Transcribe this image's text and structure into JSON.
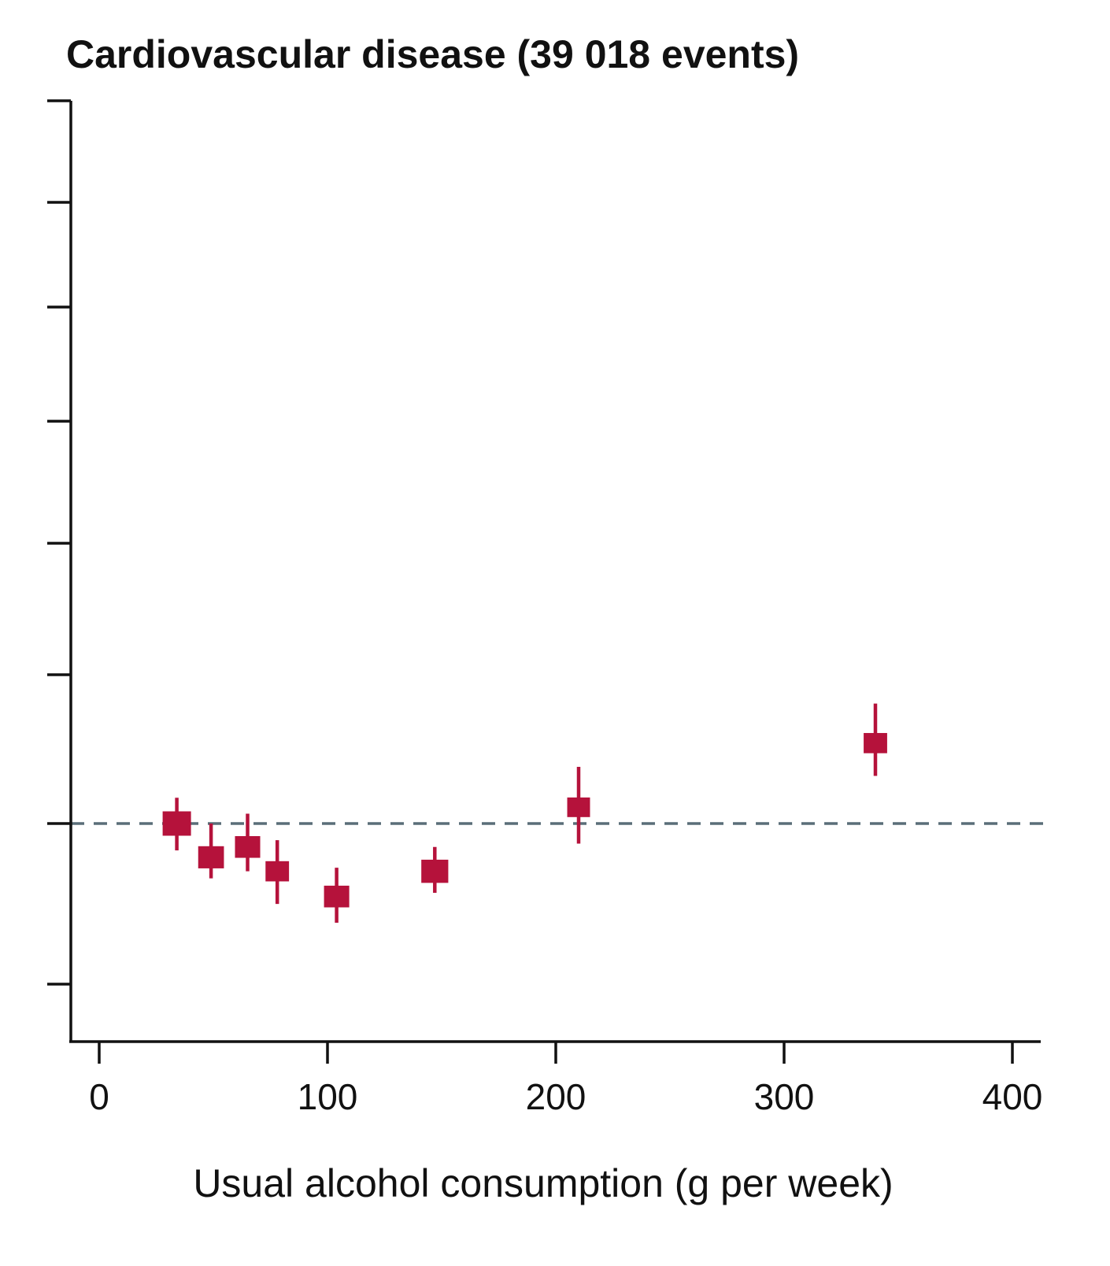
{
  "chart_data": {
    "type": "scatter",
    "title": "Cardiovascular disease (39 018 events)",
    "xlabel": "Usual alcohol consumption (g per week)",
    "ylabel": "",
    "xlim": [
      -12,
      410
    ],
    "x_ticks": [
      0,
      100,
      200,
      300,
      400
    ],
    "x_tick_labels": [
      "0",
      "100",
      "200",
      "300",
      "400"
    ],
    "y_scale": "log",
    "ylim": [
      0.73,
      3.05
    ],
    "y_ticks": [
      0.75,
      1.0,
      1.25,
      1.5,
      2.0,
      2.5,
      3.0
    ],
    "reference_line": 1.0,
    "marker_color": "#b5123b",
    "reference_line_color": "#5a6e78",
    "points": [
      {
        "x": 34,
        "y": 1.0,
        "ci_low": 0.96,
        "ci_high": 1.04,
        "weight": 1.0
      },
      {
        "x": 49,
        "y": 0.95,
        "ci_low": 0.92,
        "ci_high": 1.0,
        "weight": 0.85
      },
      {
        "x": 65,
        "y": 0.965,
        "ci_low": 0.93,
        "ci_high": 1.015,
        "weight": 0.82
      },
      {
        "x": 78,
        "y": 0.93,
        "ci_low": 0.885,
        "ci_high": 0.975,
        "weight": 0.72
      },
      {
        "x": 104,
        "y": 0.895,
        "ci_low": 0.86,
        "ci_high": 0.935,
        "weight": 0.82
      },
      {
        "x": 147,
        "y": 0.93,
        "ci_low": 0.9,
        "ci_high": 0.965,
        "weight": 0.92
      },
      {
        "x": 210,
        "y": 1.025,
        "ci_low": 0.97,
        "ci_high": 1.09,
        "weight": 0.68
      },
      {
        "x": 340,
        "y": 1.13,
        "ci_low": 1.075,
        "ci_high": 1.2,
        "weight": 0.72
      }
    ]
  }
}
